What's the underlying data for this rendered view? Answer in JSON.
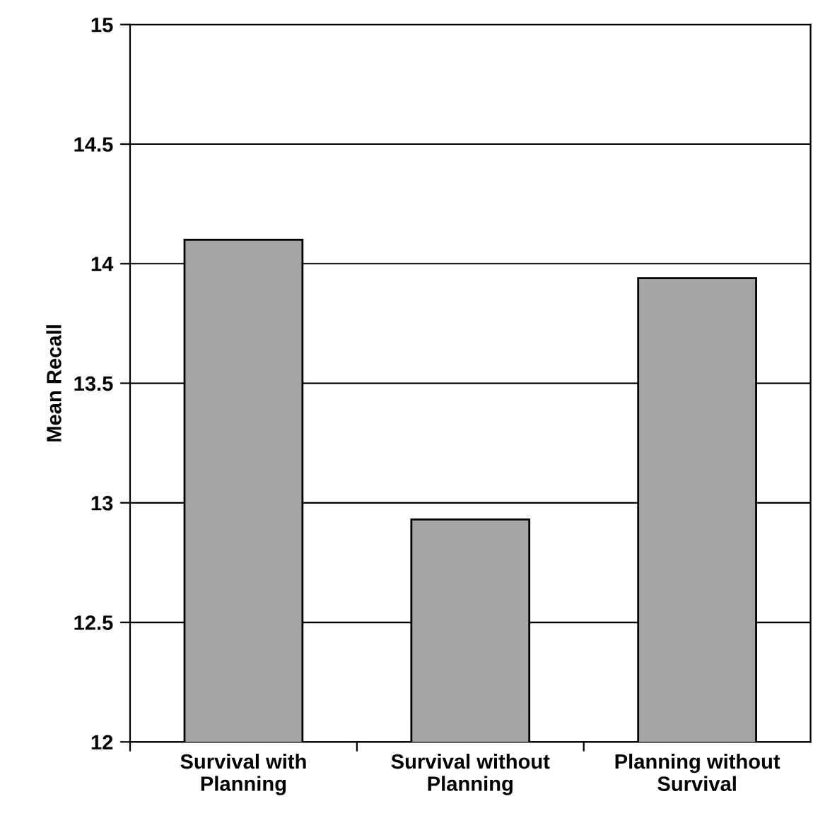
{
  "chart_data": {
    "type": "bar",
    "ylabel": "Mean Recall",
    "categories": [
      "Survival with\nPlanning",
      "Survival without\nPlanning",
      "Planning without\nSurvival"
    ],
    "values": [
      14.1,
      12.93,
      13.94
    ],
    "color": "#a6a6a6",
    "ylim": [
      12,
      15
    ],
    "yticks": [
      12,
      12.5,
      13,
      13.5,
      14,
      14.5,
      15
    ],
    "grid": "y"
  }
}
